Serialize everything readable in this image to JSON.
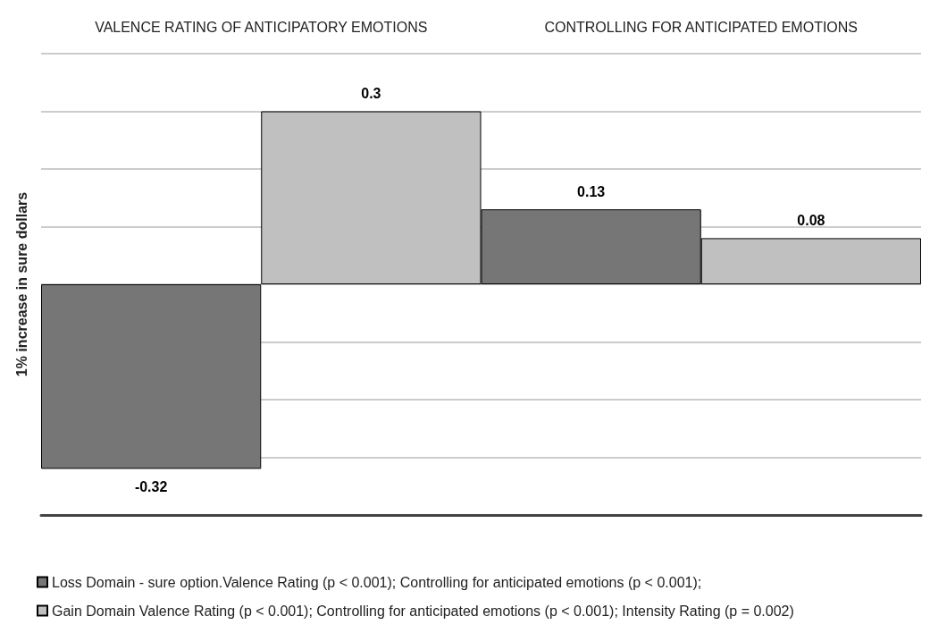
{
  "chart_data": {
    "type": "bar",
    "ylabel": "1% increase in sure dollars",
    "categories": [
      "VALENCE RATING OF ANTICIPATORY EMOTIONS",
      "CONTROLLING FOR ANTICIPATED EMOTIONS"
    ],
    "series": [
      {
        "name": "Loss Domain - sure option.Valence Rating (p < 0.001); Controlling for anticipated emotions (p < 0.001);",
        "color": "#767676",
        "values": [
          -0.32,
          0.13
        ]
      },
      {
        "name": "Gain Domain Valence Rating (p < 0.001); Controlling for anticipated emotions (p < 0.001); Intensity Rating (p = 0.002)",
        "color": "#c0c0c0",
        "values": [
          0.3,
          0.08
        ]
      }
    ],
    "ylim": [
      -0.4,
      0.4
    ],
    "yticks": [
      {
        "value": -0.4,
        "label": null
      },
      {
        "value": -0.3,
        "label": null
      },
      {
        "value": -0.2,
        "label": null
      },
      {
        "value": -0.1,
        "label": null
      },
      {
        "value": 0,
        "label": null
      },
      {
        "value": 0.1,
        "label": null
      },
      {
        "value": 0.2,
        "label": null
      },
      {
        "value": 0.3,
        "label": null
      },
      {
        "value": 0.4,
        "label": null
      }
    ],
    "tick_labels": "x",
    "grid": "y",
    "legend": "bottom",
    "data_labels": true
  }
}
